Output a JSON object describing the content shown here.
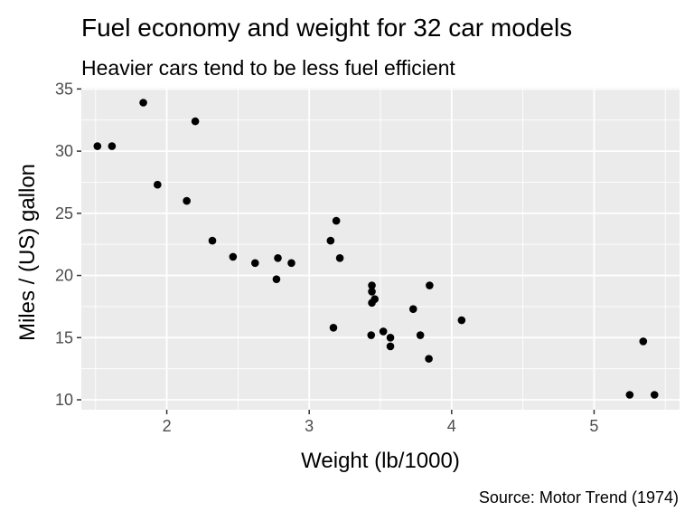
{
  "chart_data": {
    "type": "scatter",
    "title": "Fuel economy and weight for 32 car models",
    "subtitle": "Heavier cars tend to be less fuel efficient",
    "xlabel": "Weight (lb/1000)",
    "ylabel": "Miles / (US) gallon",
    "caption": "Source: Motor Trend (1974)",
    "xlim": [
      1.4,
      5.6
    ],
    "ylim": [
      9.2,
      35.1
    ],
    "xticks": [
      2,
      3,
      4,
      5
    ],
    "yticks": [
      10,
      15,
      20,
      25,
      30,
      35
    ],
    "grid": true,
    "panel_background": "#ebebeb",
    "grid_color": "#ffffff",
    "point_color": "#000000",
    "points": [
      {
        "x": 2.62,
        "y": 21.0
      },
      {
        "x": 2.875,
        "y": 21.0
      },
      {
        "x": 2.32,
        "y": 22.8
      },
      {
        "x": 3.215,
        "y": 21.4
      },
      {
        "x": 3.44,
        "y": 18.7
      },
      {
        "x": 3.46,
        "y": 18.1
      },
      {
        "x": 3.57,
        "y": 14.3
      },
      {
        "x": 3.19,
        "y": 24.4
      },
      {
        "x": 3.15,
        "y": 22.8
      },
      {
        "x": 3.44,
        "y": 19.2
      },
      {
        "x": 3.44,
        "y": 17.8
      },
      {
        "x": 4.07,
        "y": 16.4
      },
      {
        "x": 3.73,
        "y": 17.3
      },
      {
        "x": 3.78,
        "y": 15.2
      },
      {
        "x": 5.25,
        "y": 10.4
      },
      {
        "x": 5.424,
        "y": 10.4
      },
      {
        "x": 5.345,
        "y": 14.7
      },
      {
        "x": 2.2,
        "y": 32.4
      },
      {
        "x": 1.615,
        "y": 30.4
      },
      {
        "x": 1.835,
        "y": 33.9
      },
      {
        "x": 2.465,
        "y": 21.5
      },
      {
        "x": 3.52,
        "y": 15.5
      },
      {
        "x": 3.435,
        "y": 15.2
      },
      {
        "x": 3.84,
        "y": 13.3
      },
      {
        "x": 3.845,
        "y": 19.2
      },
      {
        "x": 1.935,
        "y": 27.3
      },
      {
        "x": 2.14,
        "y": 26.0
      },
      {
        "x": 1.513,
        "y": 30.4
      },
      {
        "x": 3.17,
        "y": 15.8
      },
      {
        "x": 2.77,
        "y": 19.7
      },
      {
        "x": 3.57,
        "y": 15.0
      },
      {
        "x": 2.78,
        "y": 21.4
      }
    ]
  }
}
